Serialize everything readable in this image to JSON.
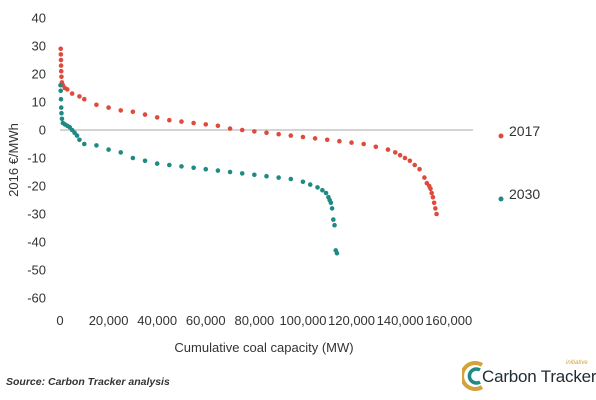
{
  "chart_data": {
    "type": "scatter",
    "title": "",
    "xlabel": "Cumulative coal capacity (MW)",
    "ylabel": "2016 €/MWh",
    "xlim": [
      0,
      170000
    ],
    "ylim": [
      -60,
      40
    ],
    "xticks": [
      "0",
      "20,000",
      "40,000",
      "60,000",
      "80,000",
      "100,000",
      "120,000",
      "140,000",
      "160,000"
    ],
    "yticks": [
      "40",
      "30",
      "20",
      "10",
      "0",
      "-10",
      "-20",
      "-30",
      "-40",
      "-50",
      "-60"
    ],
    "grid": false,
    "legend_position": "right",
    "series": [
      {
        "name": "2017",
        "color": "#e04a3c",
        "points": [
          [
            300,
            29
          ],
          [
            350,
            27
          ],
          [
            400,
            25
          ],
          [
            450,
            23
          ],
          [
            500,
            21
          ],
          [
            600,
            19
          ],
          [
            800,
            17
          ],
          [
            1200,
            16
          ],
          [
            2000,
            15
          ],
          [
            3000,
            14.5
          ],
          [
            5000,
            13
          ],
          [
            8000,
            12
          ],
          [
            10000,
            11
          ],
          [
            15000,
            9
          ],
          [
            20000,
            8
          ],
          [
            25000,
            7
          ],
          [
            30000,
            6.5
          ],
          [
            35000,
            5.5
          ],
          [
            40000,
            4.5
          ],
          [
            45000,
            3.5
          ],
          [
            50000,
            3
          ],
          [
            55000,
            2.5
          ],
          [
            60000,
            2
          ],
          [
            65000,
            1.5
          ],
          [
            70000,
            0.5
          ],
          [
            75000,
            0
          ],
          [
            80000,
            -0.5
          ],
          [
            85000,
            -1
          ],
          [
            90000,
            -1.5
          ],
          [
            95000,
            -2
          ],
          [
            100000,
            -2.5
          ],
          [
            105000,
            -3
          ],
          [
            110000,
            -3.5
          ],
          [
            115000,
            -4
          ],
          [
            120000,
            -4.5
          ],
          [
            125000,
            -5
          ],
          [
            130000,
            -6
          ],
          [
            135000,
            -7
          ],
          [
            138000,
            -8
          ],
          [
            140000,
            -9
          ],
          [
            142000,
            -10
          ],
          [
            144000,
            -11
          ],
          [
            146000,
            -12.5
          ],
          [
            148000,
            -14
          ],
          [
            150000,
            -17
          ],
          [
            151000,
            -19
          ],
          [
            152000,
            -20
          ],
          [
            152500,
            -21
          ],
          [
            153000,
            -22.5
          ],
          [
            153500,
            -24
          ],
          [
            154000,
            -26
          ],
          [
            154500,
            -28
          ],
          [
            155000,
            -30
          ]
        ]
      },
      {
        "name": "2030",
        "color": "#1f8a85",
        "points": [
          [
            200,
            16
          ],
          [
            300,
            14
          ],
          [
            400,
            11
          ],
          [
            500,
            8
          ],
          [
            600,
            6
          ],
          [
            800,
            4
          ],
          [
            1200,
            2.5
          ],
          [
            2000,
            2
          ],
          [
            3000,
            1.5
          ],
          [
            4000,
            1
          ],
          [
            5000,
            0
          ],
          [
            6000,
            -1
          ],
          [
            7000,
            -2
          ],
          [
            8000,
            -3.5
          ],
          [
            10000,
            -5
          ],
          [
            15000,
            -5.5
          ],
          [
            20000,
            -7
          ],
          [
            25000,
            -8
          ],
          [
            30000,
            -10
          ],
          [
            35000,
            -11
          ],
          [
            40000,
            -12
          ],
          [
            45000,
            -12.5
          ],
          [
            50000,
            -13
          ],
          [
            55000,
            -13.5
          ],
          [
            60000,
            -14
          ],
          [
            65000,
            -14.5
          ],
          [
            70000,
            -15
          ],
          [
            75000,
            -15.5
          ],
          [
            80000,
            -16
          ],
          [
            85000,
            -16.5
          ],
          [
            90000,
            -17
          ],
          [
            95000,
            -17.5
          ],
          [
            100000,
            -18.5
          ],
          [
            103000,
            -19.5
          ],
          [
            106000,
            -20.5
          ],
          [
            108000,
            -21.5
          ],
          [
            109500,
            -22.5
          ],
          [
            110500,
            -24
          ],
          [
            111000,
            -25
          ],
          [
            111500,
            -26
          ],
          [
            112000,
            -28
          ],
          [
            112500,
            -32
          ],
          [
            113000,
            -34
          ],
          [
            113500,
            -43
          ],
          [
            114000,
            -44
          ]
        ]
      }
    ]
  },
  "footer": {
    "source": "Source: Carbon Tracker analysis",
    "logo_text": "Carbon Tracker",
    "logo_sub": "initiative"
  }
}
